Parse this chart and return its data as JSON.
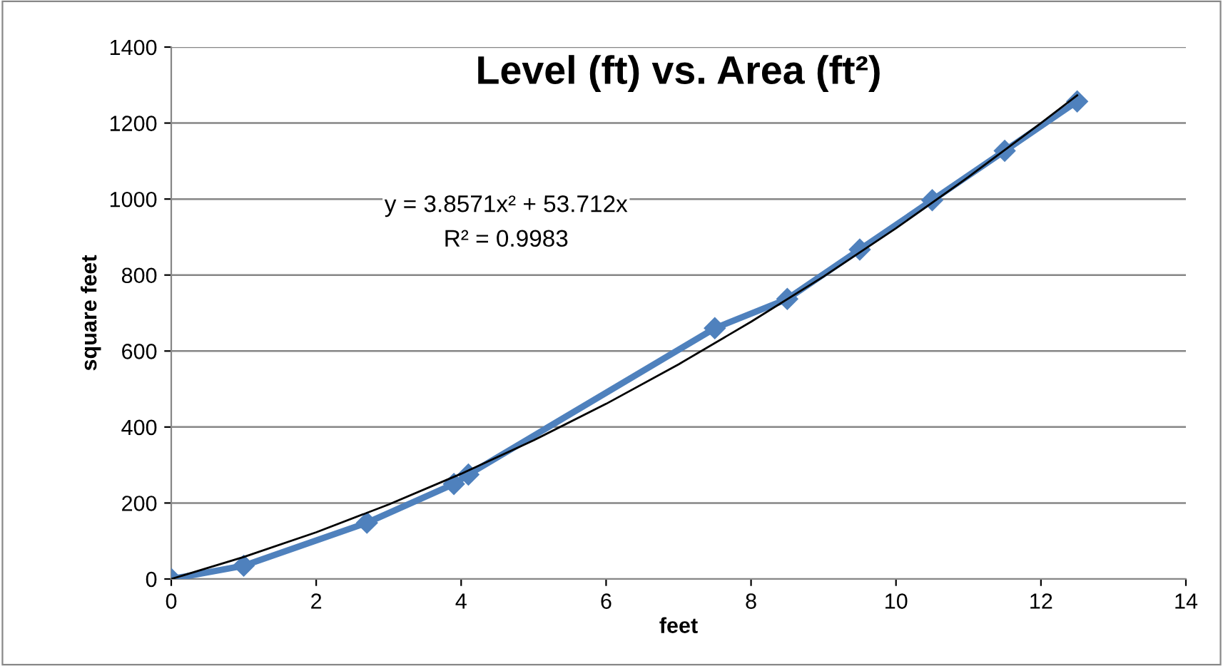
{
  "chart_data": {
    "type": "line",
    "title": "Level (ft) vs. Area (ft²)",
    "xlabel": "feet",
    "ylabel": "square feet",
    "annotations": [
      "y = 3.8571x² + 53.712x",
      "R² = 0.9983"
    ],
    "series": [
      {
        "color": "#4f81bd",
        "marker": "diamond",
        "x": [
          0,
          1,
          2.7,
          3.9,
          4.1,
          7.5,
          8.5,
          9.5,
          10.5,
          11.5,
          12.5
        ],
        "values": [
          0,
          35,
          148,
          250,
          275,
          660,
          737,
          867,
          997,
          1127,
          1257
        ]
      },
      {
        "color": "#000000",
        "marker": "none",
        "x": [
          0,
          1,
          2,
          3,
          4,
          5,
          6,
          7,
          8,
          9,
          10,
          11,
          12,
          12.5
        ],
        "values": [
          0,
          58,
          123,
          196,
          277,
          365,
          461,
          565,
          677,
          796,
          923,
          1058,
          1200,
          1273
        ]
      }
    ],
    "xlim": [
      0,
      14
    ],
    "xticks": [
      0,
      2,
      4,
      6,
      8,
      10,
      12,
      14
    ],
    "ylim": [
      0,
      1400
    ],
    "yticks": [
      0,
      200,
      400,
      600,
      800,
      1000,
      1200,
      1400
    ],
    "grid": "y",
    "legend": false
  }
}
